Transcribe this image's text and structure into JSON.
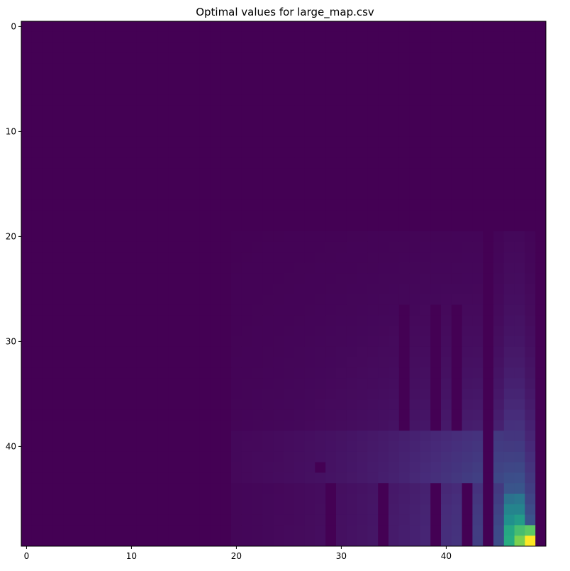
{
  "chart_data": {
    "type": "heatmap",
    "title": "Optimal values for large_map.csv",
    "rows": 50,
    "cols": 50,
    "colormap": "viridis",
    "value_range": [
      0,
      1
    ],
    "x_ticks": [
      0,
      10,
      20,
      30,
      40
    ],
    "y_ticks": [
      0,
      10,
      20,
      30,
      40
    ],
    "grid": false,
    "colorbar": false,
    "wall_cols": [
      44,
      49
    ],
    "wall_segments": [
      {
        "col": 29,
        "row_start": 44,
        "row_end": 49
      },
      {
        "col": 34,
        "row_start": 44,
        "row_end": 49
      },
      {
        "col": 36,
        "row_start": 27,
        "row_end": 38
      },
      {
        "col": 39,
        "row_start": 27,
        "row_end": 38
      },
      {
        "col": 39,
        "row_start": 44,
        "row_end": 49
      },
      {
        "col": 41,
        "row_start": 27,
        "row_end": 38
      },
      {
        "col": 42,
        "row_start": 44,
        "row_end": 49
      }
    ],
    "wall_cells": [
      [
        42,
        28
      ]
    ],
    "peaks": [
      {
        "row": 49,
        "col": 48,
        "value": 1.0
      },
      {
        "row": 49,
        "col": 47,
        "value": 0.8
      },
      {
        "row": 48,
        "col": 48,
        "value": 0.75
      },
      {
        "row": 48,
        "col": 47,
        "value": 0.7
      },
      {
        "row": 49,
        "col": 46,
        "value": 0.62
      },
      {
        "row": 48,
        "col": 46,
        "value": 0.6
      },
      {
        "row": 47,
        "col": 47,
        "value": 0.55
      },
      {
        "row": 47,
        "col": 46,
        "value": 0.5
      },
      {
        "row": 46,
        "col": 46,
        "value": 0.45
      },
      {
        "row": 46,
        "col": 47,
        "value": 0.45
      },
      {
        "row": 45,
        "col": 46,
        "value": 0.38
      },
      {
        "row": 45,
        "col": 47,
        "value": 0.4
      }
    ]
  }
}
